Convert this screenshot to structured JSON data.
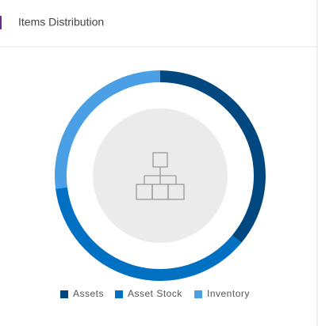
{
  "chart_data": {
    "type": "donut",
    "title": "Items Distribution",
    "categories": [
      "Assets",
      "Asset Stock",
      "Inventory"
    ],
    "values": [
      36,
      37,
      27
    ],
    "colors": [
      "#00487f",
      "#0070c2",
      "#4a9fe5"
    ],
    "legend": "bottom"
  }
}
